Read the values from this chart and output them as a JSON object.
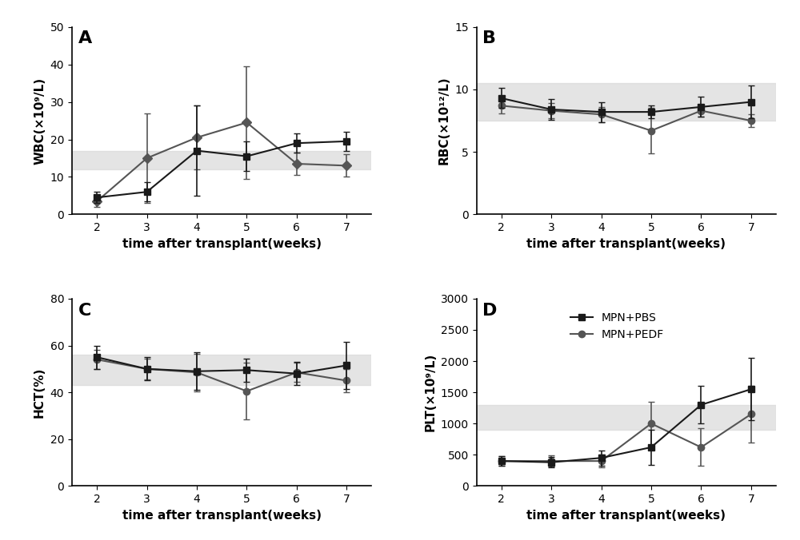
{
  "weeks": [
    2,
    3,
    4,
    5,
    6,
    7
  ],
  "panel_A": {
    "title": "A",
    "ylabel": "WBC(×10⁹/L)",
    "xlabel": "time after transplant(weeks)",
    "ylim": [
      0,
      50
    ],
    "yticks": [
      0,
      10,
      20,
      30,
      40,
      50
    ],
    "shade_low": 12,
    "shade_high": 17,
    "mpn_pbs_y": [
      4.5,
      6,
      17,
      15.5,
      19,
      19.5
    ],
    "mpn_pbs_err": [
      1.5,
      2.5,
      12,
      4,
      2.5,
      2.5
    ],
    "mpn_pedf_y": [
      3.5,
      15,
      20.5,
      24.5,
      13.5,
      13
    ],
    "mpn_pedf_err": [
      1.5,
      12,
      8.5,
      15,
      3,
      3
    ],
    "pedf_marker": "D"
  },
  "panel_B": {
    "title": "B",
    "ylabel": "RBC(×10¹²/L)",
    "xlabel": "time after transplant(weeks)",
    "ylim": [
      0,
      15
    ],
    "yticks": [
      0,
      5,
      10,
      15
    ],
    "shade_low": 7.5,
    "shade_high": 10.5,
    "mpn_pbs_y": [
      9.3,
      8.4,
      8.2,
      8.2,
      8.6,
      9.0
    ],
    "mpn_pbs_err": [
      0.8,
      0.8,
      0.8,
      0.5,
      0.8,
      1.3
    ],
    "mpn_pedf_y": [
      8.7,
      8.3,
      8.0,
      6.7,
      8.3,
      7.5
    ],
    "mpn_pedf_err": [
      0.6,
      0.6,
      0.6,
      1.8,
      0.5,
      0.5
    ],
    "pedf_marker": "o"
  },
  "panel_C": {
    "title": "C",
    "ylabel": "HCT(%)",
    "xlabel": "time after transplant(weeks)",
    "ylim": [
      0,
      80
    ],
    "yticks": [
      0,
      20,
      40,
      60,
      80
    ],
    "shade_low": 43,
    "shade_high": 56,
    "mpn_pbs_y": [
      55,
      50,
      49,
      49.5,
      48,
      51.5
    ],
    "mpn_pbs_err": [
      5,
      5,
      8,
      5,
      5,
      10
    ],
    "mpn_pedf_y": [
      54,
      50,
      48.5,
      40.5,
      48.5,
      45
    ],
    "mpn_pedf_err": [
      4,
      4.5,
      8,
      12,
      4,
      5
    ],
    "pedf_marker": "o"
  },
  "panel_D": {
    "title": "D",
    "ylabel": "PLT(×10⁹/L)",
    "xlabel": "time after transplant(weeks)",
    "ylim": [
      0,
      3000
    ],
    "yticks": [
      0,
      500,
      1000,
      1500,
      2000,
      2500,
      3000
    ],
    "shade_low": 900,
    "shade_high": 1300,
    "mpn_pbs_y": [
      400,
      380,
      450,
      620,
      1300,
      1550
    ],
    "mpn_pbs_err": [
      80,
      80,
      120,
      280,
      300,
      500
    ],
    "mpn_pedf_y": [
      400,
      400,
      400,
      1000,
      620,
      1150
    ],
    "mpn_pedf_err": [
      80,
      90,
      100,
      350,
      300,
      450
    ],
    "pedf_marker": "o"
  },
  "line_color_pbs": "#1a1a1a",
  "line_color_pedf": "#555555",
  "shade_color": "#d3d3d3",
  "marker_pbs": "s",
  "legend_labels": [
    "MPN+PBS",
    "MPN+PEDF"
  ],
  "background_color": "#ffffff"
}
